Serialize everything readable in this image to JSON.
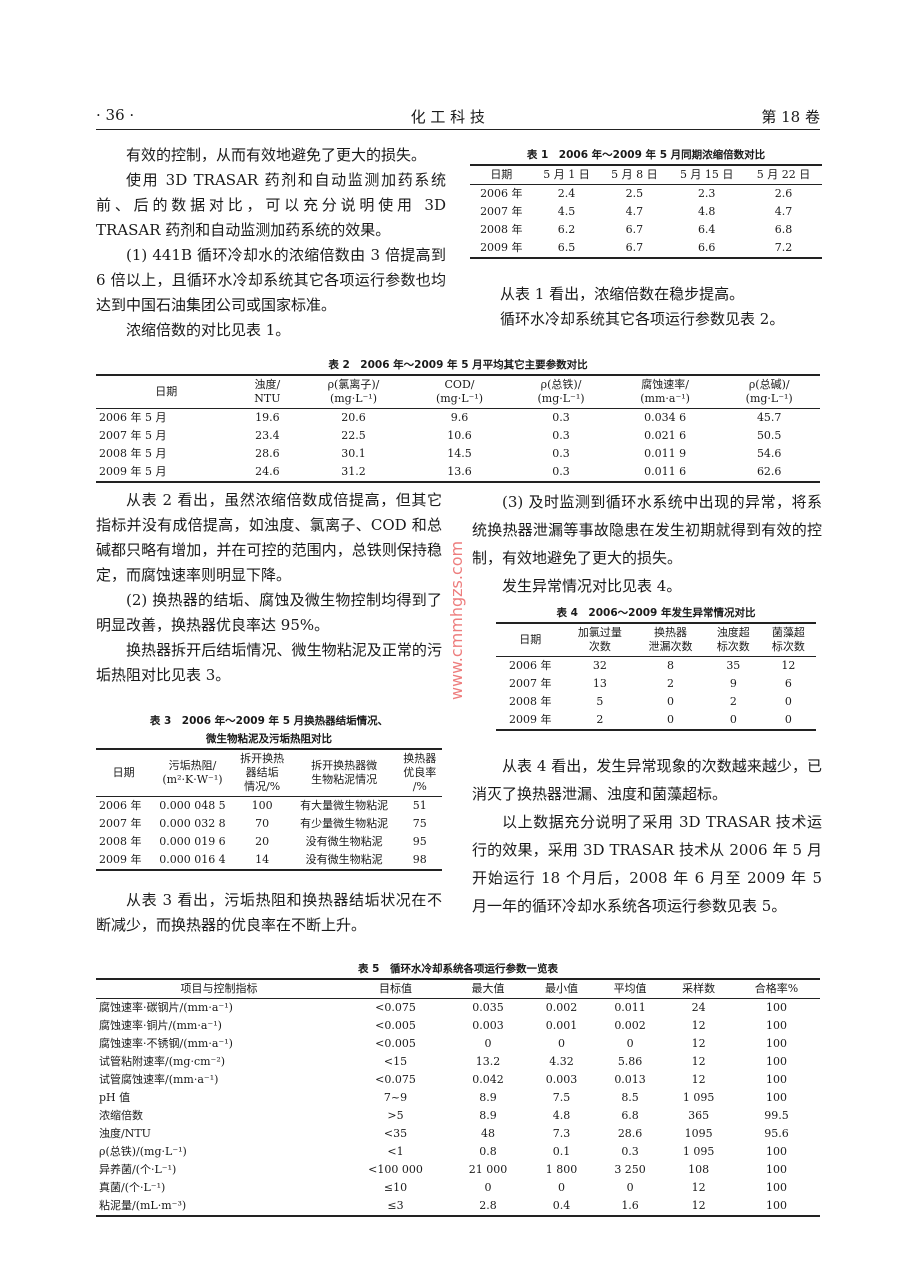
{
  "header": {
    "page": "· 36 ·",
    "journal": "化 工 科 技",
    "volume": "第 18 卷"
  },
  "left1": [
    "有效的控制，从而有效地避免了更大的损失。",
    "使用 3D TRASAR 药剂和自动监测加药系统前、后的数据对比，可以充分说明使用 3D TRASAR 药剂和自动监测加药系统的效果。",
    "(1) 441B 循环冷却水的浓缩倍数由 3 倍提高到 6 倍以上，且循环水冷却系统其它各项运行参数也均达到中国石油集团公司或国家标准。",
    "浓缩倍数的对比见表 1。"
  ],
  "table1": {
    "caption": "表 1　2006 年～2009 年 5 月同期浓缩倍数对比",
    "headers": [
      "日期",
      "5 月 1 日",
      "5 月 8 日",
      "5 月 15 日",
      "5 月 22 日"
    ],
    "rows": [
      [
        "2006 年",
        "2.4",
        "2.5",
        "2.3",
        "2.6"
      ],
      [
        "2007 年",
        "4.5",
        "4.7",
        "4.8",
        "4.7"
      ],
      [
        "2008 年",
        "6.2",
        "6.7",
        "6.4",
        "6.8"
      ],
      [
        "2009 年",
        "6.5",
        "6.7",
        "6.6",
        "7.2"
      ]
    ]
  },
  "right1": [
    "从表 1 看出，浓缩倍数在稳步提高。",
    "循环水冷却系统其它各项运行参数见表 2。"
  ],
  "table2": {
    "caption": "表 2　2006 年～2009 年 5 月平均其它主要参数对比",
    "headers": [
      "日期",
      "浊度/\nNTU",
      "ρ(氯离子)/\n(mg·L⁻¹)",
      "COD/\n(mg·L⁻¹)",
      "ρ(总铁)/\n(mg·L⁻¹)",
      "腐蚀速率/\n(mm·a⁻¹)",
      "ρ(总碱)/\n(mg·L⁻¹)"
    ],
    "rows": [
      [
        "2006 年 5 月",
        "19.6",
        "20.6",
        "9.6",
        "0.3",
        "0.034 6",
        "45.7"
      ],
      [
        "2007 年 5 月",
        "23.4",
        "22.5",
        "10.6",
        "0.3",
        "0.021 6",
        "50.5"
      ],
      [
        "2008 年 5 月",
        "28.6",
        "30.1",
        "14.5",
        "0.3",
        "0.011 9",
        "54.6"
      ],
      [
        "2009 年 5 月",
        "24.6",
        "31.2",
        "13.6",
        "0.3",
        "0.011 6",
        "62.6"
      ]
    ]
  },
  "left2": [
    "从表 2 看出，虽然浓缩倍数成倍提高，但其它指标并没有成倍提高，如浊度、氯离子、COD 和总碱都只略有增加，并在可控的范围内，总铁则保持稳定，而腐蚀速率则明显下降。",
    "(2) 换热器的结垢、腐蚀及微生物控制均得到了明显改善，换热器优良率达 95%。",
    "换热器拆开后结垢情况、微生物粘泥及正常的污垢热阻对比见表 3。"
  ],
  "table3": {
    "caption": "表 3　2006 年～2009 年 5 月换热器结垢情况、\n微生物粘泥及污垢热阻对比",
    "headers": [
      "日期",
      "污垢热阻/\n(m²·K·W⁻¹)",
      "拆开换热\n器结垢\n情况/%",
      "拆开换热器微\n生物粘泥情况",
      "换热器\n优良率\n/%"
    ],
    "rows": [
      [
        "2006 年",
        "0.000 048 5",
        "100",
        "有大量微生物粘泥",
        "51"
      ],
      [
        "2007 年",
        "0.000 032 8",
        "70",
        "有少量微生物粘泥",
        "75"
      ],
      [
        "2008 年",
        "0.000 019 6",
        "20",
        "没有微生物粘泥",
        "95"
      ],
      [
        "2009 年",
        "0.000 016 4",
        "14",
        "没有微生物粘泥",
        "98"
      ]
    ]
  },
  "left3": [
    "从表 3 看出，污垢热阻和换热器结垢状况在不断减少，而换热器的优良率在不断上升。"
  ],
  "right2": [
    "(3) 及时监测到循环水系统中出现的异常，将系统换热器泄漏等事故隐患在发生初期就得到有效的控制，有效地避免了更大的损失。",
    "发生异常情况对比见表 4。"
  ],
  "table4": {
    "caption": "表 4　2006～2009 年发生异常情况对比",
    "headers": [
      "日期",
      "加氯过量\n次数",
      "换热器\n泄漏次数",
      "浊度超\n标次数",
      "菌藻超\n标次数"
    ],
    "rows": [
      [
        "2006 年",
        "32",
        "8",
        "35",
        "12"
      ],
      [
        "2007 年",
        "13",
        "2",
        "9",
        "6"
      ],
      [
        "2008 年",
        "5",
        "0",
        "2",
        "0"
      ],
      [
        "2009 年",
        "2",
        "0",
        "0",
        "0"
      ]
    ]
  },
  "right3": [
    "从表 4 看出，发生异常现象的次数越来越少，已消灭了换热器泄漏、浊度和菌藻超标。",
    "以上数据充分说明了采用 3D TRASAR 技术运行的效果，采用 3D TRASAR 技术从 2006 年 5 月开始运行 18 个月后，2008 年 6 月至 2009 年 5 月一年的循环冷却水系统各项运行参数见表 5。"
  ],
  "table5": {
    "caption": "表 5　循环水冷却系统各项运行参数一览表",
    "headers": [
      "项目与控制指标",
      "目标值",
      "最大值",
      "最小值",
      "平均值",
      "采样数",
      "合格率%"
    ],
    "rows": [
      [
        "腐蚀速率·碳钢片/(mm·a⁻¹)",
        "<0.075",
        "0.035",
        "0.002",
        "0.011",
        "24",
        "100"
      ],
      [
        "腐蚀速率·铜片/(mm·a⁻¹)",
        "<0.005",
        "0.003",
        "0.001",
        "0.002",
        "12",
        "100"
      ],
      [
        "腐蚀速率·不锈钢/(mm·a⁻¹)",
        "<0.005",
        "0",
        "0",
        "0",
        "12",
        "100"
      ],
      [
        "试管粘附速率/(mg·cm⁻²)",
        "<15",
        "13.2",
        "4.32",
        "5.86",
        "12",
        "100"
      ],
      [
        "试管腐蚀速率/(mm·a⁻¹)",
        "<0.075",
        "0.042",
        "0.003",
        "0.013",
        "12",
        "100"
      ],
      [
        "pH 值",
        "7~9",
        "8.9",
        "7.5",
        "8.5",
        "1 095",
        "100"
      ],
      [
        "浓缩倍数",
        ">5",
        "8.9",
        "4.8",
        "6.8",
        "365",
        "99.5"
      ],
      [
        "浊度/NTU",
        "<35",
        "48",
        "7.3",
        "28.6",
        "1095",
        "95.6"
      ],
      [
        "ρ(总铁)/(mg·L⁻¹)",
        "<1",
        "0.8",
        "0.1",
        "0.3",
        "1 095",
        "100"
      ],
      [
        "异养菌/(个·L⁻¹)",
        "<100 000",
        "21 000",
        "1 800",
        "3 250",
        "108",
        "100"
      ],
      [
        "真菌/(个·L⁻¹)",
        "≤10",
        "0",
        "0",
        "0",
        "12",
        "100"
      ],
      [
        "粘泥量/(mL·m⁻³)",
        "≤3",
        "2.8",
        "0.4",
        "1.6",
        "12",
        "100"
      ]
    ]
  },
  "watermark": "www.cmmhgzs.com"
}
